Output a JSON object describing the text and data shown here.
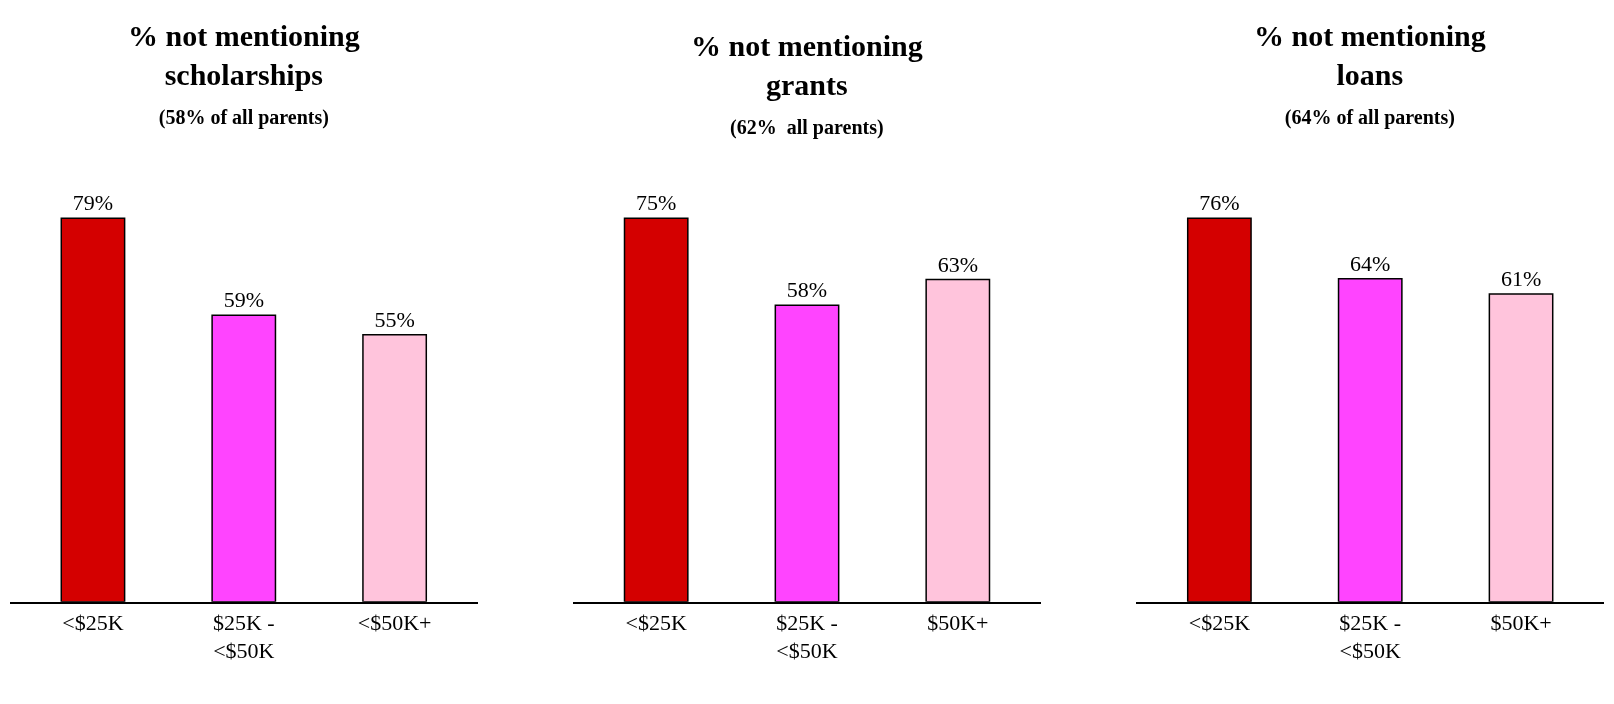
{
  "chart_data": [
    {
      "type": "bar",
      "title": "% not mentioning scholarships",
      "subtitle": "(58% of all parents)",
      "categories": [
        "<$25K",
        "$25K - <$50K",
        "<$50K+"
      ],
      "values": [
        79,
        59,
        55
      ],
      "value_labels": [
        "79%",
        "59%",
        "55%"
      ],
      "colors": [
        "#d40000",
        "#ff44ff",
        "#ffc4dc"
      ],
      "tick_labels": "x"
    },
    {
      "type": "bar",
      "title": "% not mentioning grants",
      "subtitle": "(62%  all parents)",
      "categories": [
        "<$25K",
        "$25K - <$50K",
        "$50K+"
      ],
      "values": [
        75,
        58,
        63
      ],
      "value_labels": [
        "75%",
        "58%",
        "63%"
      ],
      "colors": [
        "#d40000",
        "#ff44ff",
        "#ffc4dc"
      ],
      "tick_labels": "x"
    },
    {
      "type": "bar",
      "title": "% not mentioning loans",
      "subtitle": "(64% of all parents)",
      "categories": [
        "<$25K",
        "$25K - <$50K",
        "$50K+"
      ],
      "values": [
        76,
        64,
        61
      ],
      "value_labels": [
        "76%",
        "64%",
        "61%"
      ],
      "colors": [
        "#d40000",
        "#ff44ff",
        "#ffc4dc"
      ],
      "tick_labels": "x"
    }
  ]
}
